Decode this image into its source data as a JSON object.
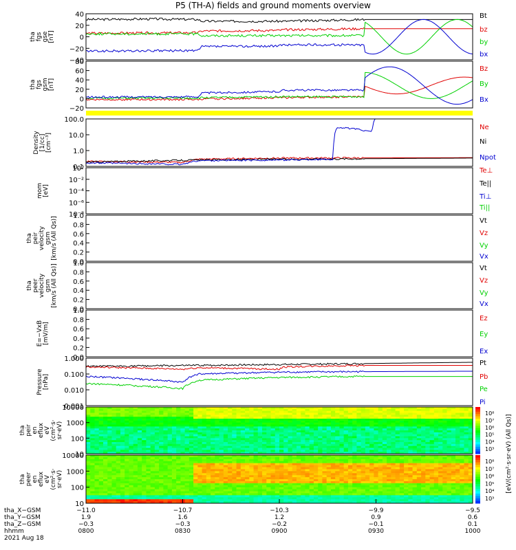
{
  "title": "P5 (TH-A) fields and ground moments overview",
  "colors": {
    "black": "#000000",
    "red": "#e00000",
    "green": "#00d000",
    "blue": "#0000d0",
    "flag_bar": "#ffff00"
  },
  "chart_data": [
    {
      "type": "line",
      "name": "fgs_gse",
      "ylabel_lines": [
        "tha",
        "fgs",
        "gse",
        "[nT]"
      ],
      "yticks": [
        "40",
        "20",
        "0",
        "−20",
        "−40"
      ],
      "ylim": [
        -40,
        40
      ],
      "legend": [
        {
          "label": "Bt",
          "color": "black"
        },
        {
          "label": "bz",
          "color": "red"
        },
        {
          "label": "by",
          "color": "green"
        },
        {
          "label": "bx",
          "color": "blue"
        }
      ],
      "series": [
        {
          "name": "Bt",
          "color": "black",
          "x": [
            0,
            0.17,
            0.29,
            0.3,
            0.5,
            0.51,
            0.72,
            1.0
          ],
          "y": [
            30,
            31,
            30,
            27,
            27,
            27,
            30,
            30
          ]
        },
        {
          "name": "bz",
          "color": "red",
          "x": [
            0,
            0.29,
            0.3,
            0.5,
            0.51,
            0.72,
            1.0
          ],
          "y": [
            6,
            7,
            10,
            11,
            12,
            14,
            14
          ]
        },
        {
          "name": "by",
          "color": "green",
          "x": [
            0,
            0.29,
            0.3,
            0.5,
            0.72
          ],
          "y": [
            5,
            5,
            2,
            2,
            2
          ]
        },
        {
          "name": "bx",
          "color": "blue",
          "x": [
            0,
            0.29,
            0.3,
            0.5,
            0.51,
            0.72
          ],
          "y": [
            -25,
            -24,
            -17,
            -16,
            -14,
            -14
          ]
        }
      ]
    },
    {
      "type": "line",
      "name": "fgs_gsm",
      "ylabel_lines": [
        "tha",
        "fgs",
        "gsm",
        "[nT]"
      ],
      "yticks": [
        "80",
        "60",
        "40",
        "20",
        "0",
        "−20"
      ],
      "ylim": [
        -20,
        80
      ],
      "legend": [
        {
          "label": "Bz",
          "color": "red"
        },
        {
          "label": "By",
          "color": "green"
        },
        {
          "label": "Bx",
          "color": "blue"
        }
      ],
      "series": [
        {
          "name": "Bz",
          "color": "red",
          "x": [
            0,
            0.29,
            0.3,
            0.5,
            0.72
          ],
          "y": [
            -2,
            -2,
            -1,
            2,
            4
          ]
        },
        {
          "name": "By",
          "color": "green",
          "x": [
            0,
            0.29,
            0.3,
            0.5,
            0.72
          ],
          "y": [
            1,
            1,
            2,
            4,
            4
          ]
        },
        {
          "name": "Bx",
          "color": "blue",
          "x": [
            0,
            0.29,
            0.3,
            0.5,
            0.51,
            0.72
          ],
          "y": [
            3,
            4,
            12,
            15,
            18,
            18
          ]
        }
      ]
    },
    {
      "type": "line",
      "name": "density",
      "ylabel_lines": [
        "Density",
        "[1/cc]",
        "[cm⁻³]"
      ],
      "yticks": [
        "100.0",
        "10.0",
        "1.0",
        "0.1"
      ],
      "ylog": true,
      "ylim": [
        0.08,
        150
      ],
      "legend": [
        {
          "label": "Ne",
          "color": "red"
        },
        {
          "label": "Ni",
          "color": "black"
        },
        {
          "label": "Npot",
          "color": "blue"
        }
      ],
      "series": [
        {
          "name": "Ne",
          "color": "red",
          "x": [
            0,
            0.25,
            0.29,
            0.5,
            1.0
          ],
          "y": [
            0.18,
            0.15,
            0.25,
            0.3,
            0.32
          ]
        },
        {
          "name": "Ni",
          "color": "black",
          "x": [
            0,
            0.29,
            0.5,
            1.0
          ],
          "y": [
            0.16,
            0.22,
            0.25,
            0.3
          ]
        },
        {
          "name": "Npot",
          "color": "blue",
          "x": [
            0,
            0.25,
            0.29,
            0.5,
            0.64,
            0.65,
            0.74,
            0.75
          ],
          "y": [
            0.14,
            0.11,
            0.2,
            0.22,
            0.25,
            40,
            20,
            200
          ]
        }
      ]
    },
    {
      "type": "line",
      "name": "temperature",
      "ylabel_lines": [
        "mom",
        "[eV]"
      ],
      "yticks": [
        "10⁰",
        "10⁻²",
        "10⁻⁴",
        "10⁻⁶",
        "10⁻⁸"
      ],
      "legend": [
        {
          "label": "Te⊥",
          "color": "red"
        },
        {
          "label": "Te||",
          "color": "black"
        },
        {
          "label": "Ti⊥",
          "color": "blue"
        },
        {
          "label": "Ti||",
          "color": "green"
        }
      ],
      "series": []
    },
    {
      "type": "line",
      "name": "peir_velocity",
      "ylabel_lines": [
        "tha",
        "peir",
        "velocity",
        "gsm",
        "[km/s (All Qs)]"
      ],
      "yticks": [
        "1.0",
        "0.8",
        "0.6",
        "0.4",
        "0.2",
        "0.0"
      ],
      "ylim": [
        0,
        1
      ],
      "legend": [
        {
          "label": "Vt",
          "color": "black"
        },
        {
          "label": "Vz",
          "color": "red"
        },
        {
          "label": "Vy",
          "color": "green"
        },
        {
          "label": "Vx",
          "color": "blue"
        }
      ],
      "series": []
    },
    {
      "type": "line",
      "name": "peer_velocity",
      "ylabel_lines": [
        "tha",
        "peer",
        "velocity",
        "gsm",
        "[km/s (All Qs)]"
      ],
      "yticks": [
        "1.0",
        "0.8",
        "0.6",
        "0.4",
        "0.2",
        "0.0"
      ],
      "ylim": [
        0,
        1
      ],
      "legend": [
        {
          "label": "Vt",
          "color": "black"
        },
        {
          "label": "Vz",
          "color": "red"
        },
        {
          "label": "Vy",
          "color": "green"
        },
        {
          "label": "Vx",
          "color": "blue"
        }
      ],
      "series": []
    },
    {
      "type": "line",
      "name": "efield",
      "ylabel_lines": [
        "E=−VxB",
        "[mV/m]"
      ],
      "yticks": [
        "1.0",
        "0.8",
        "0.6",
        "0.4",
        "0.2",
        "0.0"
      ],
      "ylim": [
        0,
        1
      ],
      "legend": [
        {
          "label": "Ez",
          "color": "red"
        },
        {
          "label": "Ey",
          "color": "green"
        },
        {
          "label": "Ex",
          "color": "blue"
        }
      ],
      "series": []
    },
    {
      "type": "line",
      "name": "pressure",
      "ylabel_lines": [
        "Pressure",
        "[nPa]"
      ],
      "yticks": [
        "1.000",
        "0.100",
        "0.010",
        "0.001"
      ],
      "ylog": true,
      "ylim": [
        0.001,
        1
      ],
      "legend": [
        {
          "label": "Pt",
          "color": "black"
        },
        {
          "label": "Pb",
          "color": "red"
        },
        {
          "label": "Pe",
          "color": "green"
        },
        {
          "label": "Pi",
          "color": "blue"
        }
      ],
      "series": [
        {
          "name": "Pt",
          "color": "black",
          "x": [
            0,
            0.29,
            0.5,
            0.7,
            1.0
          ],
          "y": [
            0.3,
            0.35,
            0.4,
            0.45,
            0.55
          ]
        },
        {
          "name": "Pb",
          "color": "red",
          "x": [
            0,
            0.25,
            0.29,
            0.5,
            0.51,
            0.7,
            1.0
          ],
          "y": [
            0.28,
            0.2,
            0.25,
            0.2,
            0.28,
            0.35,
            0.35
          ]
        },
        {
          "name": "Pe",
          "color": "green",
          "x": [
            0,
            0.25,
            0.29,
            0.5,
            0.7,
            1.0
          ],
          "y": [
            0.025,
            0.012,
            0.04,
            0.06,
            0.07,
            0.07
          ]
        },
        {
          "name": "Pi",
          "color": "blue",
          "x": [
            0,
            0.25,
            0.29,
            0.5,
            0.7,
            1.0
          ],
          "y": [
            0.07,
            0.03,
            0.1,
            0.13,
            0.14,
            0.15
          ]
        }
      ]
    },
    {
      "type": "heatmap",
      "name": "peir_eflux",
      "ylabel_lines": [
        "tha",
        "peir",
        "en",
        "eflux",
        "eV",
        "(cm²·s·",
        "sr·eV)"
      ],
      "yticks": [
        "10000",
        "1000",
        "100",
        "10"
      ],
      "ylog": true,
      "ylim": [
        5,
        30000
      ],
      "colorbar_ticks": [
        "10⁸",
        "10⁷",
        "10⁶",
        "10⁵",
        "10⁴",
        "10³"
      ],
      "colorbar_label": "[eV/(cm²·s·sr·eV) (All Qs)]"
    },
    {
      "type": "heatmap",
      "name": "peer_eflux",
      "ylabel_lines": [
        "tha",
        "peer",
        "en",
        "eflux",
        "eV",
        "(cm²·s·",
        "sr·eV)"
      ],
      "yticks": [
        "10000",
        "1000",
        "100",
        "10"
      ],
      "ylog": true,
      "ylim": [
        5,
        30000
      ],
      "colorbar_ticks": [
        "10⁸",
        "10⁷",
        "10⁶",
        "10⁵",
        "10⁴",
        "10³"
      ],
      "colorbar_label": "[eV/(cm²·s·sr·eV) (All Qs)]"
    }
  ],
  "x_axis": {
    "row_labels": [
      "tha_X−GSM",
      "tha_Y−GSM",
      "tha_Z−GSM",
      "hhmm",
      "2021 Aug 18"
    ],
    "columns": [
      {
        "values": [
          "−11.0",
          "1.9",
          "−0.3",
          "0800"
        ]
      },
      {
        "values": [
          "−10.7",
          "1.6",
          "−0.3",
          "0830"
        ]
      },
      {
        "values": [
          "−10.3",
          "1.2",
          "−0.2",
          "0900"
        ]
      },
      {
        "values": [
          "−9.9",
          "0.9",
          "−0.1",
          "0930"
        ]
      },
      {
        "values": [
          "−9.5",
          "0.6",
          "0.1",
          "1000"
        ]
      }
    ]
  }
}
